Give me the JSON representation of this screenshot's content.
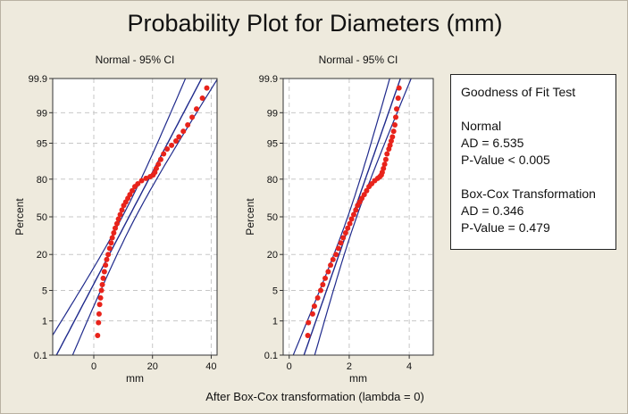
{
  "title": "Probability Plot for Diameters (mm)",
  "caption": "After Box-Cox transformation (lambda = 0)",
  "goodness_of_fit": {
    "heading": "Goodness of Fit Test",
    "normal_label": "Normal",
    "normal_ad": "AD = 6.535",
    "normal_p": "P-Value < 0.005",
    "boxcox_label": "Box-Cox Transformation",
    "boxcox_ad": "AD = 0.346",
    "boxcox_p": "P-Value = 0.479"
  },
  "colors": {
    "points": "#e8231b",
    "fit_lines": "#1f2a8c",
    "grid": "#c7c7c7",
    "background": "#eeeadd"
  },
  "chart_data": [
    {
      "type": "scatter",
      "title": "Normal - 95% CI",
      "xlabel": "mm",
      "ylabel": "Percent",
      "xlim": [
        -14,
        42
      ],
      "xticks": [
        0,
        20,
        40
      ],
      "yticks": [
        0.1,
        1,
        5,
        20,
        50,
        80,
        95,
        99,
        99.9
      ],
      "ytick_labels": [
        "0.1",
        "1",
        "5",
        "20",
        "50",
        "80",
        "95",
        "99",
        "99.9"
      ],
      "y_scale": "normal probability",
      "grid": true,
      "fit": {
        "mean": 12,
        "sd": 8
      },
      "points": [
        [
          1.3,
          0.4
        ],
        [
          1.6,
          0.9
        ],
        [
          1.8,
          1.5
        ],
        [
          2.0,
          2.5
        ],
        [
          2.3,
          3.5
        ],
        [
          2.6,
          5
        ],
        [
          2.9,
          6.5
        ],
        [
          3.2,
          8.5
        ],
        [
          3.6,
          11
        ],
        [
          4.0,
          14
        ],
        [
          4.4,
          17
        ],
        [
          4.9,
          20
        ],
        [
          5.4,
          24
        ],
        [
          5.9,
          28
        ],
        [
          6.3,
          32
        ],
        [
          6.8,
          36
        ],
        [
          7.3,
          40
        ],
        [
          7.9,
          44
        ],
        [
          8.4,
          48
        ],
        [
          9.0,
          52
        ],
        [
          9.6,
          56
        ],
        [
          10.2,
          60
        ],
        [
          10.9,
          63
        ],
        [
          11.6,
          66
        ],
        [
          12.3,
          69
        ],
        [
          13.1,
          72
        ],
        [
          14.0,
          75
        ],
        [
          15.0,
          77
        ],
        [
          16.3,
          79
        ],
        [
          17.8,
          80.5
        ],
        [
          19.2,
          81.5
        ],
        [
          20.2,
          82.5
        ],
        [
          20.8,
          84
        ],
        [
          21.3,
          86
        ],
        [
          22.0,
          88
        ],
        [
          22.8,
          90
        ],
        [
          23.8,
          92
        ],
        [
          25.0,
          93.5
        ],
        [
          26.5,
          94.5
        ],
        [
          28.0,
          95.5
        ],
        [
          29.0,
          96.3
        ],
        [
          30.5,
          97.2
        ],
        [
          32.0,
          98
        ],
        [
          33.5,
          98.7
        ],
        [
          35.0,
          99.2
        ],
        [
          37.0,
          99.6
        ],
        [
          38.5,
          99.8
        ]
      ]
    },
    {
      "type": "scatter",
      "title": "Normal - 95% CI",
      "xlabel": "mm",
      "ylabel": "Percent",
      "xlim": [
        -0.2,
        4.8
      ],
      "xticks": [
        0,
        2,
        4
      ],
      "yticks": [
        0.1,
        1,
        5,
        20,
        50,
        80,
        95,
        99,
        99.9
      ],
      "ytick_labels": [
        "0.1",
        "1",
        "5",
        "20",
        "50",
        "80",
        "95",
        "99",
        "99.9"
      ],
      "y_scale": "normal probability",
      "grid": true,
      "fit": {
        "mean": 2.1,
        "sd": 0.52
      },
      "points": [
        [
          0.62,
          0.4
        ],
        [
          0.64,
          0.9
        ],
        [
          0.78,
          1.5
        ],
        [
          0.84,
          2.3
        ],
        [
          0.95,
          3.5
        ],
        [
          1.05,
          5
        ],
        [
          1.12,
          6.5
        ],
        [
          1.2,
          8.5
        ],
        [
          1.3,
          11
        ],
        [
          1.38,
          14
        ],
        [
          1.46,
          17
        ],
        [
          1.56,
          20
        ],
        [
          1.64,
          24
        ],
        [
          1.72,
          28
        ],
        [
          1.8,
          32
        ],
        [
          1.88,
          36
        ],
        [
          1.95,
          40
        ],
        [
          2.02,
          44
        ],
        [
          2.08,
          48
        ],
        [
          2.15,
          52
        ],
        [
          2.22,
          56
        ],
        [
          2.28,
          60
        ],
        [
          2.35,
          63
        ],
        [
          2.42,
          66
        ],
        [
          2.5,
          69
        ],
        [
          2.58,
          72
        ],
        [
          2.66,
          75
        ],
        [
          2.75,
          77
        ],
        [
          2.85,
          79
        ],
        [
          2.95,
          80.5
        ],
        [
          3.02,
          81.5
        ],
        [
          3.07,
          82.5
        ],
        [
          3.1,
          84
        ],
        [
          3.14,
          86
        ],
        [
          3.18,
          88
        ],
        [
          3.22,
          90
        ],
        [
          3.26,
          92
        ],
        [
          3.32,
          93.5
        ],
        [
          3.36,
          94.5
        ],
        [
          3.4,
          95.5
        ],
        [
          3.44,
          96.3
        ],
        [
          3.48,
          97.2
        ],
        [
          3.52,
          98
        ],
        [
          3.55,
          98.7
        ],
        [
          3.58,
          99.2
        ],
        [
          3.63,
          99.6
        ],
        [
          3.66,
          99.8
        ]
      ]
    }
  ]
}
